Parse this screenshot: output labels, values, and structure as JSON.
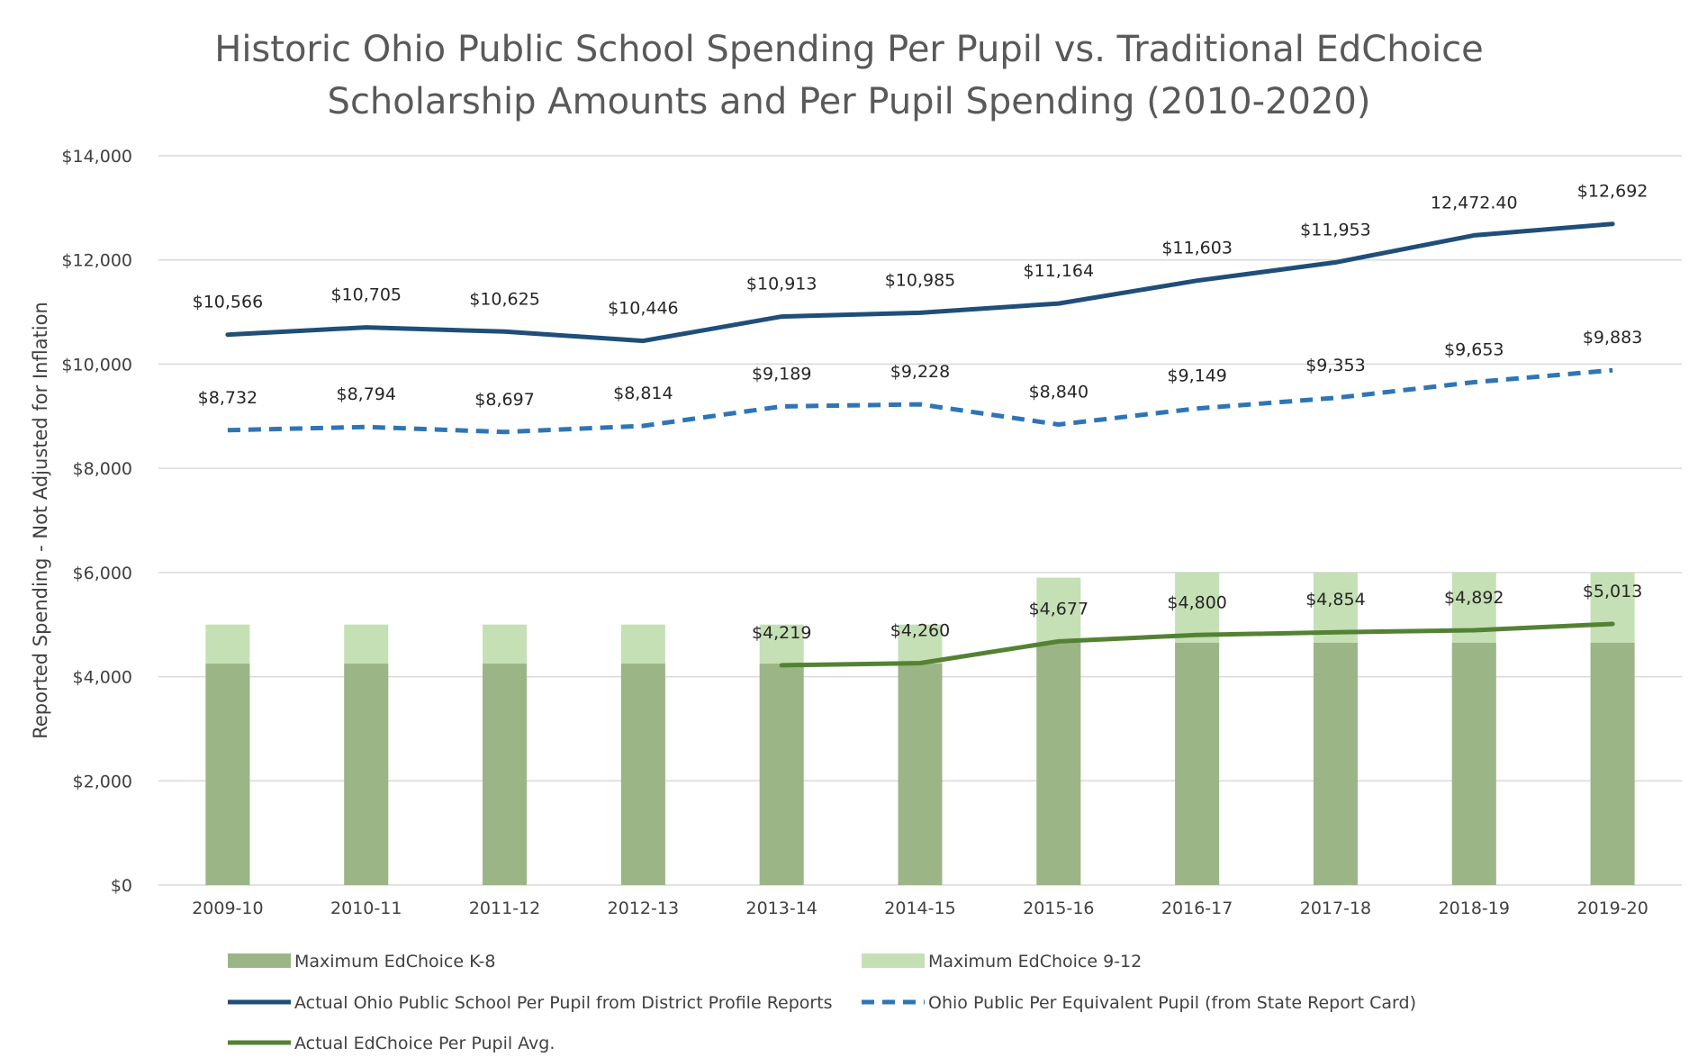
{
  "chart_data": {
    "type": "bar",
    "title_lines": [
      "Historic Ohio Public School Spending Per Pupil vs. Traditional EdChoice",
      "Scholarship Amounts and Per Pupil Spending (2010-2020)"
    ],
    "xlabel": "",
    "ylabel": "Reported Spending - Not Adjusted for Inflation",
    "ylim": [
      0,
      14000
    ],
    "yticks": [
      0,
      2000,
      4000,
      6000,
      8000,
      10000,
      12000,
      14000
    ],
    "ytick_labels": [
      "$0",
      "$2,000",
      "$4,000",
      "$6,000",
      "$8,000",
      "$10,000",
      "$12,000",
      "$14,000"
    ],
    "grid": true,
    "legend_position": "bottom",
    "categories": [
      "2009-10",
      "2010-11",
      "2011-12",
      "2012-13",
      "2013-14",
      "2014-15",
      "2015-16",
      "2016-17",
      "2017-18",
      "2018-19",
      "2019-20"
    ],
    "series": [
      {
        "name": "Maximum EdChoice K-8",
        "kind": "bar",
        "color": "#9bb586",
        "values": [
          4250,
          4250,
          4250,
          4250,
          4250,
          4250,
          4650,
          4650,
          4650,
          4650,
          4650
        ]
      },
      {
        "name": "Maximum EdChoice 9-12",
        "kind": "bar",
        "color": "#c5e0b4",
        "values": [
          5000,
          5000,
          5000,
          5000,
          5000,
          5000,
          5900,
          6000,
          6000,
          6000,
          6000
        ]
      },
      {
        "name": "Actual Ohio Public School Per Pupil from District Profile Reports",
        "kind": "line",
        "color": "#1f4e79",
        "dash": "solid",
        "values": [
          10566,
          10705,
          10625,
          10446,
          10913,
          10985,
          11164,
          11603,
          11953,
          12472.4,
          12692
        ],
        "labels": [
          "$10,566",
          "$10,705",
          "$10,625",
          "$10,446",
          "$10,913",
          "$10,985",
          "$11,164",
          "$11,603",
          "$11,953",
          "12,472.40",
          "$12,692"
        ]
      },
      {
        "name": "Ohio Public Per Equivalent Pupil (from State Report Card)",
        "kind": "line",
        "color": "#2e75b6",
        "dash": "dashed",
        "values": [
          8732,
          8794,
          8697,
          8814,
          9189,
          9228,
          8840,
          9149,
          9353,
          9653,
          9883
        ],
        "labels": [
          "$8,732",
          "$8,794",
          "$8,697",
          "$8,814",
          "$9,189",
          "$9,228",
          "$8,840",
          "$9,149",
          "$9,353",
          "$9,653",
          "$9,883"
        ]
      },
      {
        "name": "Actual EdChoice Per Pupil Avg.",
        "kind": "line",
        "color": "#548235",
        "dash": "solid",
        "values": [
          null,
          null,
          null,
          null,
          4219,
          4260,
          4677,
          4800,
          4854,
          4892,
          5013
        ],
        "labels": [
          null,
          null,
          null,
          null,
          "$4,219",
          "$4,260",
          "$4,677",
          "$4,800",
          "$4,854",
          "$4,892",
          "$5,013"
        ]
      }
    ]
  }
}
